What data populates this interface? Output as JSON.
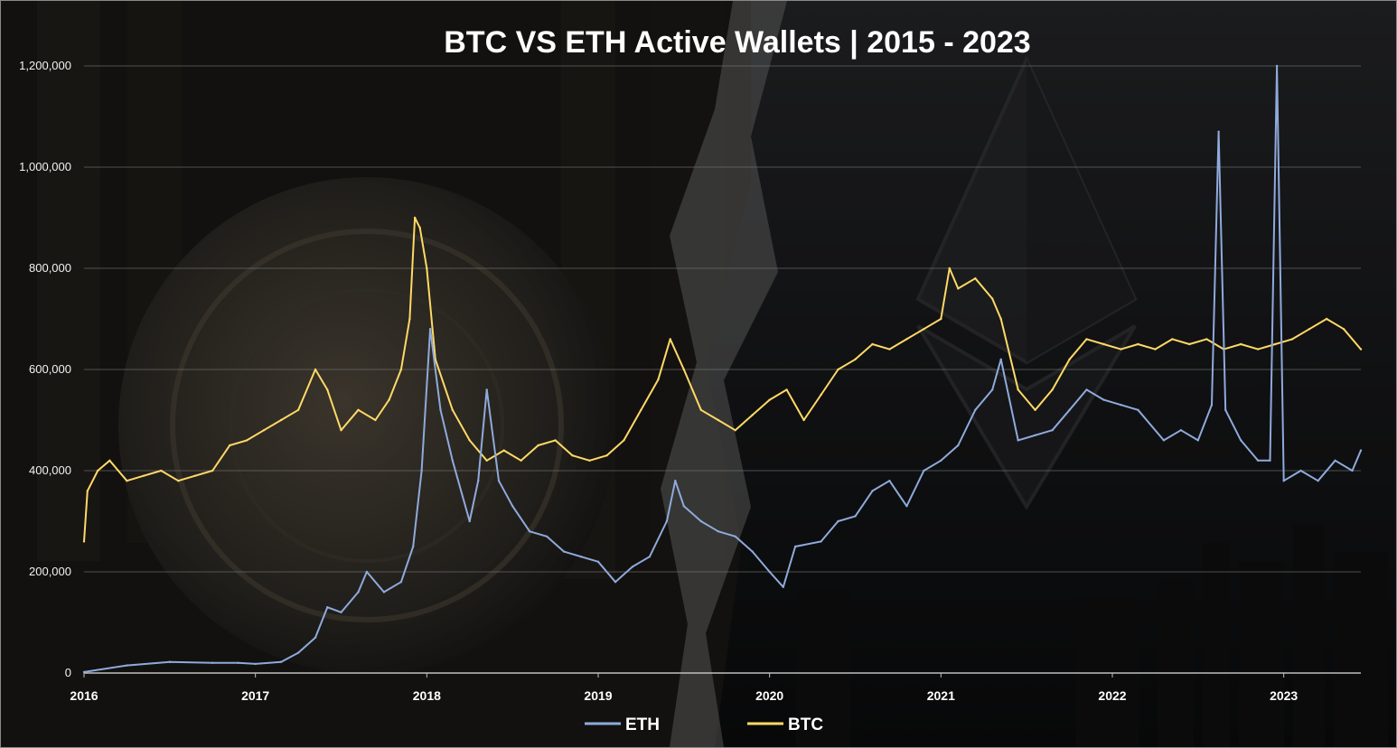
{
  "chart_data": {
    "type": "line",
    "title": "BTC VS ETH Active Wallets | 2015 - 2023",
    "xlabel": "",
    "ylabel": "",
    "x_ticks": [
      "2016",
      "2017",
      "2018",
      "2019",
      "2020",
      "2021",
      "2022",
      "2023"
    ],
    "y_ticks": [
      "0",
      "200,000",
      "400,000",
      "600,000",
      "800,000",
      "1,000,000",
      "1,200,000"
    ],
    "ylim": [
      0,
      1200000
    ],
    "xlim": [
      2016.0,
      2023.45
    ],
    "grid": "horizontal",
    "legend_position": "bottom",
    "series": [
      {
        "name": "ETH",
        "color": "#8faadc",
        "points": [
          [
            2016.0,
            2000
          ],
          [
            2016.25,
            15000
          ],
          [
            2016.5,
            22000
          ],
          [
            2016.75,
            20000
          ],
          [
            2016.9,
            20000
          ],
          [
            2017.0,
            18000
          ],
          [
            2017.15,
            22000
          ],
          [
            2017.25,
            40000
          ],
          [
            2017.35,
            70000
          ],
          [
            2017.42,
            130000
          ],
          [
            2017.5,
            120000
          ],
          [
            2017.6,
            160000
          ],
          [
            2017.65,
            200000
          ],
          [
            2017.75,
            160000
          ],
          [
            2017.85,
            180000
          ],
          [
            2017.92,
            250000
          ],
          [
            2017.97,
            400000
          ],
          [
            2018.02,
            680000
          ],
          [
            2018.08,
            520000
          ],
          [
            2018.15,
            420000
          ],
          [
            2018.25,
            300000
          ],
          [
            2018.3,
            380000
          ],
          [
            2018.35,
            560000
          ],
          [
            2018.42,
            380000
          ],
          [
            2018.5,
            330000
          ],
          [
            2018.6,
            280000
          ],
          [
            2018.7,
            270000
          ],
          [
            2018.8,
            240000
          ],
          [
            2018.9,
            230000
          ],
          [
            2019.0,
            220000
          ],
          [
            2019.1,
            180000
          ],
          [
            2019.2,
            210000
          ],
          [
            2019.3,
            230000
          ],
          [
            2019.4,
            300000
          ],
          [
            2019.45,
            380000
          ],
          [
            2019.5,
            330000
          ],
          [
            2019.6,
            300000
          ],
          [
            2019.7,
            280000
          ],
          [
            2019.8,
            270000
          ],
          [
            2019.9,
            240000
          ],
          [
            2020.0,
            200000
          ],
          [
            2020.08,
            170000
          ],
          [
            2020.15,
            250000
          ],
          [
            2020.3,
            260000
          ],
          [
            2020.4,
            300000
          ],
          [
            2020.5,
            310000
          ],
          [
            2020.6,
            360000
          ],
          [
            2020.7,
            380000
          ],
          [
            2020.8,
            330000
          ],
          [
            2020.9,
            400000
          ],
          [
            2021.0,
            420000
          ],
          [
            2021.1,
            450000
          ],
          [
            2021.2,
            520000
          ],
          [
            2021.3,
            560000
          ],
          [
            2021.35,
            620000
          ],
          [
            2021.45,
            460000
          ],
          [
            2021.55,
            470000
          ],
          [
            2021.65,
            480000
          ],
          [
            2021.75,
            520000
          ],
          [
            2021.85,
            560000
          ],
          [
            2021.95,
            540000
          ],
          [
            2022.05,
            530000
          ],
          [
            2022.15,
            520000
          ],
          [
            2022.3,
            460000
          ],
          [
            2022.4,
            480000
          ],
          [
            2022.5,
            460000
          ],
          [
            2022.58,
            530000
          ],
          [
            2022.62,
            1070000
          ],
          [
            2022.66,
            520000
          ],
          [
            2022.75,
            460000
          ],
          [
            2022.85,
            420000
          ],
          [
            2022.92,
            420000
          ],
          [
            2022.96,
            1200000
          ],
          [
            2023.0,
            380000
          ],
          [
            2023.1,
            400000
          ],
          [
            2023.2,
            380000
          ],
          [
            2023.3,
            420000
          ],
          [
            2023.4,
            400000
          ],
          [
            2023.45,
            440000
          ]
        ]
      },
      {
        "name": "BTC",
        "color": "#ffd966",
        "points": [
          [
            2016.0,
            260000
          ],
          [
            2016.02,
            360000
          ],
          [
            2016.08,
            400000
          ],
          [
            2016.15,
            420000
          ],
          [
            2016.25,
            380000
          ],
          [
            2016.35,
            390000
          ],
          [
            2016.45,
            400000
          ],
          [
            2016.55,
            380000
          ],
          [
            2016.65,
            390000
          ],
          [
            2016.75,
            400000
          ],
          [
            2016.85,
            450000
          ],
          [
            2016.95,
            460000
          ],
          [
            2017.05,
            480000
          ],
          [
            2017.15,
            500000
          ],
          [
            2017.25,
            520000
          ],
          [
            2017.35,
            600000
          ],
          [
            2017.42,
            560000
          ],
          [
            2017.5,
            480000
          ],
          [
            2017.6,
            520000
          ],
          [
            2017.7,
            500000
          ],
          [
            2017.78,
            540000
          ],
          [
            2017.85,
            600000
          ],
          [
            2017.9,
            700000
          ],
          [
            2017.93,
            900000
          ],
          [
            2017.96,
            880000
          ],
          [
            2018.0,
            800000
          ],
          [
            2018.05,
            620000
          ],
          [
            2018.15,
            520000
          ],
          [
            2018.25,
            460000
          ],
          [
            2018.35,
            420000
          ],
          [
            2018.45,
            440000
          ],
          [
            2018.55,
            420000
          ],
          [
            2018.65,
            450000
          ],
          [
            2018.75,
            460000
          ],
          [
            2018.85,
            430000
          ],
          [
            2018.95,
            420000
          ],
          [
            2019.05,
            430000
          ],
          [
            2019.15,
            460000
          ],
          [
            2019.25,
            520000
          ],
          [
            2019.35,
            580000
          ],
          [
            2019.42,
            660000
          ],
          [
            2019.5,
            600000
          ],
          [
            2019.6,
            520000
          ],
          [
            2019.7,
            500000
          ],
          [
            2019.8,
            480000
          ],
          [
            2019.9,
            510000
          ],
          [
            2020.0,
            540000
          ],
          [
            2020.1,
            560000
          ],
          [
            2020.2,
            500000
          ],
          [
            2020.3,
            550000
          ],
          [
            2020.4,
            600000
          ],
          [
            2020.5,
            620000
          ],
          [
            2020.6,
            650000
          ],
          [
            2020.7,
            640000
          ],
          [
            2020.8,
            660000
          ],
          [
            2020.9,
            680000
          ],
          [
            2021.0,
            700000
          ],
          [
            2021.05,
            800000
          ],
          [
            2021.1,
            760000
          ],
          [
            2021.2,
            780000
          ],
          [
            2021.3,
            740000
          ],
          [
            2021.35,
            700000
          ],
          [
            2021.45,
            560000
          ],
          [
            2021.55,
            520000
          ],
          [
            2021.65,
            560000
          ],
          [
            2021.75,
            620000
          ],
          [
            2021.85,
            660000
          ],
          [
            2021.95,
            650000
          ],
          [
            2022.05,
            640000
          ],
          [
            2022.15,
            650000
          ],
          [
            2022.25,
            640000
          ],
          [
            2022.35,
            660000
          ],
          [
            2022.45,
            650000
          ],
          [
            2022.55,
            660000
          ],
          [
            2022.65,
            640000
          ],
          [
            2022.75,
            650000
          ],
          [
            2022.85,
            640000
          ],
          [
            2022.95,
            650000
          ],
          [
            2023.05,
            660000
          ],
          [
            2023.15,
            680000
          ],
          [
            2023.25,
            700000
          ],
          [
            2023.35,
            680000
          ],
          [
            2023.45,
            640000
          ]
        ]
      }
    ]
  }
}
